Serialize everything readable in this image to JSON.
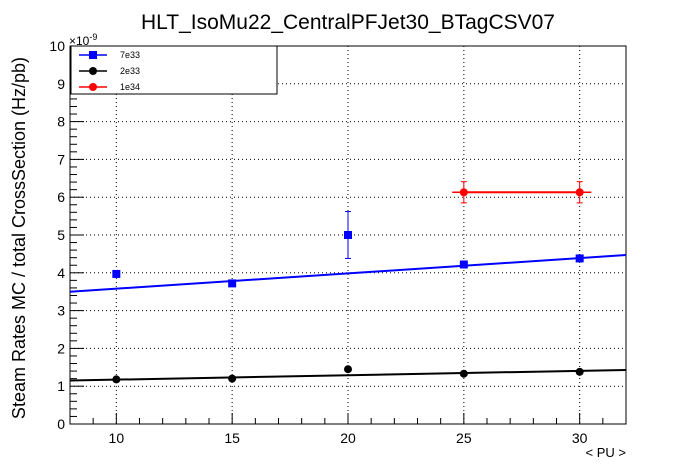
{
  "chart_data": {
    "type": "scatter",
    "title": "HLT_IsoMu22_CentralPFJet30_BTagCSV07",
    "xlabel": "< PU >",
    "ylabel": "Steam Rates MC / total CrossSection (Hz/pb)",
    "y_exponent": "×10",
    "y_exponent_power": "-9",
    "xlim": [
      8,
      32
    ],
    "ylim": [
      0,
      10
    ],
    "x_ticks": [
      10,
      15,
      20,
      25,
      30
    ],
    "y_ticks": [
      0,
      1,
      2,
      3,
      4,
      5,
      6,
      7,
      8,
      9,
      10
    ],
    "grid": true,
    "legend_position": "top-left",
    "series": [
      {
        "name": "7e33",
        "color": "#0000ff",
        "marker": "square",
        "points": [
          {
            "x": 10,
            "y": 3.97,
            "yerr": 0.0
          },
          {
            "x": 15,
            "y": 3.72,
            "yerr": 0.0
          },
          {
            "x": 20,
            "y": 5.0,
            "yerr": 0.62
          },
          {
            "x": 25,
            "y": 4.22,
            "yerr": 0.0
          },
          {
            "x": 30,
            "y": 4.38,
            "yerr": 0.0
          }
        ],
        "fit": {
          "x": [
            8,
            32
          ],
          "y": [
            3.5,
            4.47
          ]
        }
      },
      {
        "name": "2e33",
        "color": "#000000",
        "marker": "circle",
        "points": [
          {
            "x": 10,
            "y": 1.18,
            "yerr": 0.0
          },
          {
            "x": 15,
            "y": 1.2,
            "yerr": 0.0
          },
          {
            "x": 20,
            "y": 1.45,
            "yerr": 0.0
          },
          {
            "x": 25,
            "y": 1.33,
            "yerr": 0.0
          },
          {
            "x": 30,
            "y": 1.38,
            "yerr": 0.0
          }
        ],
        "fit": {
          "x": [
            8,
            32
          ],
          "y": [
            1.15,
            1.43
          ]
        }
      },
      {
        "name": "1e34",
        "color": "#ff0000",
        "marker": "circle",
        "points": [
          {
            "x": 25,
            "y": 6.13,
            "yerr": 0.28,
            "xerr": 0.5
          },
          {
            "x": 30,
            "y": 6.13,
            "yerr": 0.28,
            "xerr": 0.5
          }
        ],
        "fit": {
          "x": [
            25,
            30
          ],
          "y": [
            6.13,
            6.13
          ]
        }
      }
    ]
  }
}
